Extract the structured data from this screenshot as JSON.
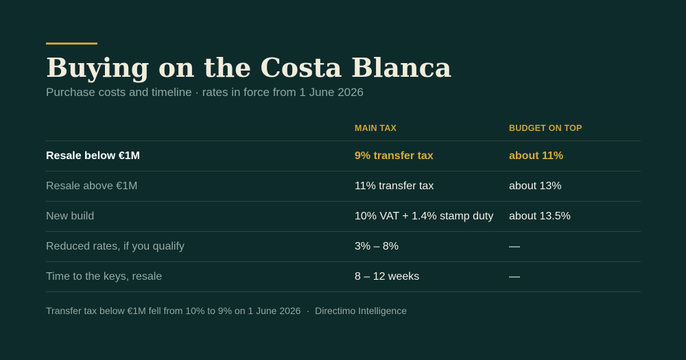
{
  "title": "Buying on the Costa Blanca",
  "subtitle": "Purchase costs and timeline · rates in force from 1 June 2026",
  "table": {
    "headers": [
      "",
      "MAIN TAX",
      "BUDGET ON TOP"
    ],
    "rows": [
      {
        "label": "Resale below €1M",
        "main_tax": "9% transfer tax",
        "budget": "about 11%",
        "highlight": true
      },
      {
        "label": "Resale above €1M",
        "main_tax": "11% transfer tax",
        "budget": "about 13%"
      },
      {
        "label": "New build",
        "main_tax": "10% VAT + 1.4% stamp duty",
        "budget": "about 13.5%"
      },
      {
        "label": "Reduced rates, if you qualify",
        "main_tax": "3% – 8%",
        "budget": "—"
      },
      {
        "label": "Time to the keys, resale",
        "main_tax": "8 – 12 weeks",
        "budget": "—"
      }
    ]
  },
  "footnote": {
    "text": "Transfer tax below €1M fell from 10% to 9% on 1 June 2026",
    "separator": "·",
    "source": "Directimo Intelligence"
  },
  "colors": {
    "background": "#0e2b2b",
    "accent": "#c9a33a",
    "title": "#f1ecdb",
    "muted": "#8fa8a3"
  }
}
